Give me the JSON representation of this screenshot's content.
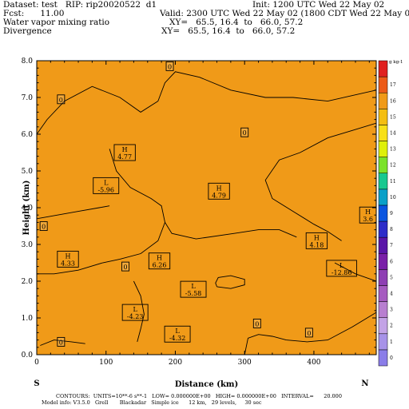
{
  "header": {
    "dataset_line": "Dataset: test   RIP: rip20020522  d1",
    "init_line": "Init: 1200 UTC Wed 22 May 02",
    "fcst_line": "Fcst:      11.00",
    "valid_line": "Valid: 2300 UTC Wed 22 May 02 (1800 CDT Wed 22 May 02)",
    "field1_name": "Water vapor mixing ratio",
    "field1_xy": "XY=   65.5, 16.4  to   66.0, 57.2",
    "field2_name": "Divergence",
    "field2_xy": "XY=   65.5, 16.4  to   66.0, 57.2"
  },
  "footer": {
    "contours": "CONTOURS:  UNITS=10**-6 s**-1   LOW= 0.000000E+00   HIGH= 0.000000E+00   INTERVAL=      20.000",
    "model_info": "Model info: V3.5.0   Grell       Blackadar   Simple ice      12 km,   29 levels,     30 sec"
  },
  "chart_data": {
    "type": "contour-section",
    "xlabel": "Distance (km)",
    "ylabel": "Height (km)",
    "xlim": [
      0,
      490
    ],
    "ylim": [
      0,
      8
    ],
    "xticks": [
      "0",
      "100",
      "200",
      "300",
      "400"
    ],
    "yticks": [
      "0.0",
      "1.0",
      "2.0",
      "3.0",
      "4.0",
      "5.0",
      "6.0",
      "7.0",
      "8.0"
    ],
    "xtick_values": [
      0,
      100,
      200,
      300,
      400
    ],
    "ytick_values": [
      0,
      1,
      2,
      3,
      4,
      5,
      6,
      7,
      8
    ],
    "x_endpoints": [
      "S",
      "N"
    ],
    "colorbar": {
      "unit": "g kg-1",
      "levels": [
        0,
        1,
        2,
        3,
        4,
        5,
        6,
        7,
        8,
        9,
        10,
        11,
        12,
        13,
        14,
        15,
        16,
        17,
        18
      ],
      "colors": [
        "#8a7de8",
        "#a792e8",
        "#c3a3e6",
        "#b87fd0",
        "#a65bc0",
        "#8e3fb3",
        "#7a1fa8",
        "#5a16a8",
        "#2d2dc9",
        "#0a55e0",
        "#0aa0c8",
        "#18c890",
        "#7be22a",
        "#dff00a",
        "#f8e018",
        "#f4be12",
        "#f09a18",
        "#ec5a18",
        "#e02020"
      ]
    },
    "field_bands": [
      {
        "value": 0.5,
        "color": "#8a7de8"
      },
      {
        "value": 1.5,
        "color": "#a792e8"
      },
      {
        "value": 2.5,
        "color": "#c3a3e6"
      },
      {
        "value": 3.5,
        "color": "#b87fd0"
      },
      {
        "value": 4.5,
        "color": "#a65bc0"
      },
      {
        "value": 5.5,
        "color": "#7a1fa8"
      },
      {
        "value": 6.5,
        "color": "#2d2dc9"
      },
      {
        "value": 8,
        "color": "#0a55e0"
      },
      {
        "value": 9.5,
        "color": "#0aa0c8"
      },
      {
        "value": 10.5,
        "color": "#18c890"
      },
      {
        "value": 11.5,
        "color": "#7be22a"
      },
      {
        "value": 12,
        "color": "#dff00a"
      },
      {
        "value": 12.5,
        "color": "#f8e018"
      },
      {
        "value": 14,
        "color": "#f09a18"
      }
    ],
    "annotations": [
      {
        "kind": "L",
        "value": "-5.96",
        "x": 100,
        "y": 4.6
      },
      {
        "kind": "H",
        "value": "4.77",
        "x": 127,
        "y": 5.5
      },
      {
        "kind": "H",
        "value": "4.79",
        "x": 263,
        "y": 4.45
      },
      {
        "kind": "H",
        "value": "3.6",
        "x": 478,
        "y": 3.8
      },
      {
        "kind": "H",
        "value": "4.18",
        "x": 404,
        "y": 3.1
      },
      {
        "kind": "H",
        "value": "4.33",
        "x": 45,
        "y": 2.6
      },
      {
        "kind": "H",
        "value": "6.26",
        "x": 177,
        "y": 2.55
      },
      {
        "kind": "L",
        "value": "-12.86",
        "x": 440,
        "y": 2.35
      },
      {
        "kind": "L",
        "value": "-5.58",
        "x": 226,
        "y": 1.78
      },
      {
        "kind": "L",
        "value": "-4.23",
        "x": 142,
        "y": 1.15
      },
      {
        "kind": "L",
        "value": "-4.32",
        "x": 203,
        "y": 0.56
      }
    ],
    "zero_labels": [
      {
        "text": "0",
        "x": 192,
        "y": 7.85
      },
      {
        "text": "0",
        "x": 35,
        "y": 6.95
      },
      {
        "text": "0",
        "x": 300,
        "y": 6.05
      },
      {
        "text": "0",
        "x": 10,
        "y": 3.5
      },
      {
        "text": "0",
        "x": 128,
        "y": 2.4
      },
      {
        "text": "0",
        "x": 318,
        "y": 0.85
      },
      {
        "text": "0",
        "x": 393,
        "y": 0.6
      },
      {
        "text": "0",
        "x": 35,
        "y": 0.35
      }
    ]
  }
}
